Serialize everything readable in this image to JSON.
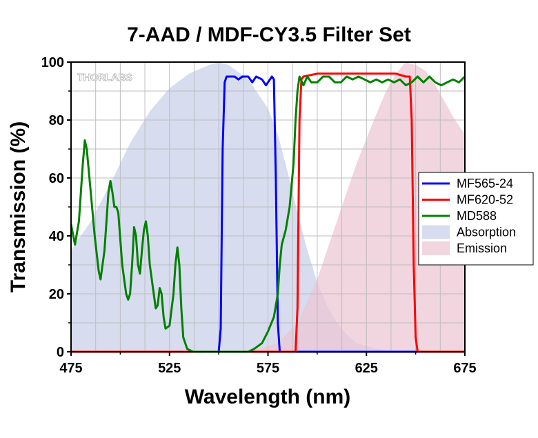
{
  "chart_data": {
    "type": "line",
    "title": "7-AAD / MDF-CY3.5 Filter Set",
    "xlabel": "Wavelength (nm)",
    "ylabel": "Transmission (%)",
    "xlim": [
      475,
      675
    ],
    "ylim": [
      0,
      100
    ],
    "xticks": [
      475,
      525,
      575,
      625,
      675
    ],
    "yticks": [
      0,
      20,
      40,
      60,
      80,
      100
    ],
    "grid": true,
    "legend_position": "right",
    "watermark": "THORLABS",
    "series": [
      {
        "name": "MF565-24",
        "kind": "line",
        "color": "#0000ff",
        "points": [
          [
            475,
            0
          ],
          [
            550,
            0
          ],
          [
            551,
            8
          ],
          [
            552,
            70
          ],
          [
            553,
            93
          ],
          [
            554,
            95
          ],
          [
            558,
            95
          ],
          [
            560,
            94
          ],
          [
            562,
            95
          ],
          [
            565,
            95
          ],
          [
            567,
            93
          ],
          [
            569,
            95
          ],
          [
            572,
            94
          ],
          [
            574,
            92
          ],
          [
            575,
            93
          ],
          [
            577,
            95
          ],
          [
            578,
            94
          ],
          [
            579,
            60
          ],
          [
            580,
            10
          ],
          [
            581,
            0
          ],
          [
            675,
            0
          ]
        ]
      },
      {
        "name": "MF620-52",
        "kind": "line",
        "color": "#ff0000",
        "points": [
          [
            475,
            0
          ],
          [
            589,
            0
          ],
          [
            590,
            15
          ],
          [
            591,
            80
          ],
          [
            592,
            94
          ],
          [
            593,
            95
          ],
          [
            600,
            96
          ],
          [
            610,
            96
          ],
          [
            620,
            96
          ],
          [
            630,
            96
          ],
          [
            640,
            96
          ],
          [
            645,
            95
          ],
          [
            647,
            95
          ],
          [
            648,
            80
          ],
          [
            649,
            30
          ],
          [
            650,
            5
          ],
          [
            651,
            0
          ],
          [
            675,
            0
          ]
        ]
      },
      {
        "name": "MD588",
        "kind": "line",
        "color": "#008000",
        "points": [
          [
            475,
            44
          ],
          [
            477,
            37
          ],
          [
            479,
            45
          ],
          [
            481,
            65
          ],
          [
            482,
            73
          ],
          [
            483,
            70
          ],
          [
            485,
            55
          ],
          [
            487,
            40
          ],
          [
            489,
            28
          ],
          [
            490,
            25
          ],
          [
            492,
            35
          ],
          [
            494,
            55
          ],
          [
            495,
            59
          ],
          [
            496,
            55
          ],
          [
            497,
            50
          ],
          [
            498,
            50
          ],
          [
            499,
            48
          ],
          [
            501,
            30
          ],
          [
            503,
            20
          ],
          [
            504,
            18
          ],
          [
            505,
            20
          ],
          [
            506,
            30
          ],
          [
            507,
            43
          ],
          [
            508,
            40
          ],
          [
            509,
            30
          ],
          [
            510,
            27
          ],
          [
            511,
            35
          ],
          [
            512,
            42
          ],
          [
            513,
            45
          ],
          [
            514,
            40
          ],
          [
            515,
            30
          ],
          [
            517,
            20
          ],
          [
            518,
            15
          ],
          [
            519,
            16
          ],
          [
            520,
            22
          ],
          [
            521,
            20
          ],
          [
            522,
            12
          ],
          [
            523,
            8
          ],
          [
            525,
            9
          ],
          [
            527,
            20
          ],
          [
            528,
            30
          ],
          [
            529,
            36
          ],
          [
            530,
            30
          ],
          [
            531,
            15
          ],
          [
            532,
            5
          ],
          [
            534,
            1
          ],
          [
            537,
            0
          ],
          [
            565,
            0
          ],
          [
            568,
            1
          ],
          [
            572,
            3
          ],
          [
            575,
            7
          ],
          [
            578,
            12
          ],
          [
            580,
            20
          ],
          [
            581,
            30
          ],
          [
            582,
            37
          ],
          [
            584,
            42
          ],
          [
            586,
            50
          ],
          [
            588,
            65
          ],
          [
            589,
            80
          ],
          [
            590,
            90
          ],
          [
            591,
            95
          ],
          [
            593,
            92
          ],
          [
            595,
            95
          ],
          [
            597,
            93
          ],
          [
            600,
            93
          ],
          [
            603,
            95
          ],
          [
            606,
            95
          ],
          [
            609,
            93
          ],
          [
            612,
            93
          ],
          [
            615,
            95
          ],
          [
            618,
            94
          ],
          [
            621,
            95
          ],
          [
            624,
            94
          ],
          [
            627,
            93
          ],
          [
            630,
            94
          ],
          [
            633,
            93
          ],
          [
            636,
            94
          ],
          [
            639,
            93
          ],
          [
            642,
            94
          ],
          [
            645,
            92
          ],
          [
            648,
            93
          ],
          [
            651,
            95
          ],
          [
            654,
            93
          ],
          [
            657,
            95
          ],
          [
            660,
            93
          ],
          [
            663,
            92
          ],
          [
            666,
            93
          ],
          [
            669,
            94
          ],
          [
            672,
            93
          ],
          [
            675,
            95
          ]
        ]
      },
      {
        "name": "Absorption",
        "kind": "area",
        "color": "#c9d0ea",
        "points": [
          [
            475,
            35
          ],
          [
            485,
            45
          ],
          [
            495,
            58
          ],
          [
            505,
            72
          ],
          [
            515,
            83
          ],
          [
            525,
            91
          ],
          [
            535,
            96
          ],
          [
            545,
            99
          ],
          [
            550,
            100
          ],
          [
            555,
            99
          ],
          [
            565,
            94
          ],
          [
            575,
            84
          ],
          [
            580,
            75
          ],
          [
            585,
            62
          ],
          [
            590,
            48
          ],
          [
            595,
            35
          ],
          [
            600,
            24
          ],
          [
            605,
            16
          ],
          [
            610,
            10
          ],
          [
            615,
            6
          ],
          [
            620,
            3
          ],
          [
            630,
            1
          ],
          [
            640,
            0
          ],
          [
            675,
            0
          ]
        ]
      },
      {
        "name": "Emission",
        "kind": "area",
        "color": "#ecc7d4",
        "points": [
          [
            475,
            0
          ],
          [
            560,
            0
          ],
          [
            570,
            1
          ],
          [
            580,
            3
          ],
          [
            590,
            10
          ],
          [
            600,
            25
          ],
          [
            610,
            45
          ],
          [
            620,
            65
          ],
          [
            630,
            82
          ],
          [
            635,
            90
          ],
          [
            640,
            96
          ],
          [
            645,
            100
          ],
          [
            650,
            99
          ],
          [
            655,
            97
          ],
          [
            660,
            92
          ],
          [
            665,
            86
          ],
          [
            670,
            80
          ],
          [
            675,
            75
          ]
        ]
      }
    ]
  }
}
